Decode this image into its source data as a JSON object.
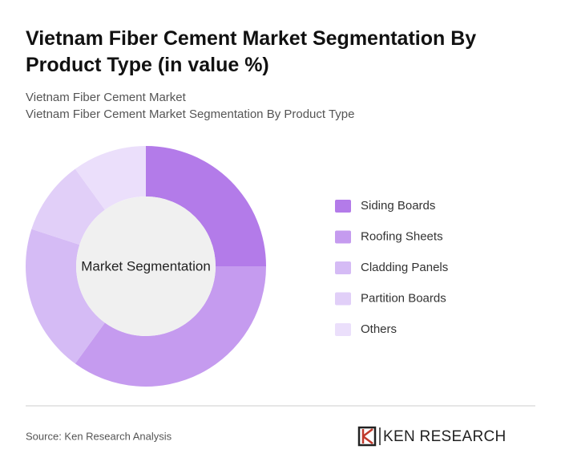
{
  "chart_data": {
    "type": "donut",
    "title": "Vietnam Fiber Cement Market Segmentation By Product Type (in value %)",
    "subtitle": [
      "Vietnam Fiber Cement Market",
      "Vietnam Fiber Cement Market Segmentation By Product Type"
    ],
    "center_label": "Market Segmentation",
    "categories": [
      "Siding Boards",
      "Roofing Sheets",
      "Cladding Panels",
      "Partition Boards",
      "Others"
    ],
    "values": [
      25,
      35,
      20,
      10,
      10
    ],
    "colors": [
      "#b37be9",
      "#c59bef",
      "#d5bbf5",
      "#e1cff8",
      "#ebdffb"
    ],
    "source": "Source: Ken Research Analysis",
    "brand": "KEN RESEARCH"
  }
}
